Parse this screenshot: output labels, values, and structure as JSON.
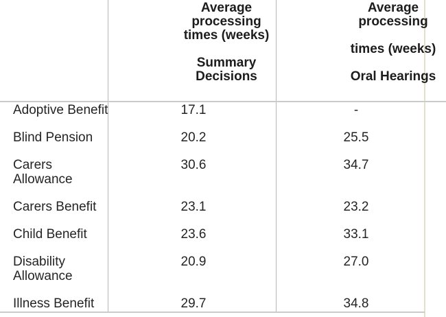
{
  "table": {
    "header": {
      "summary_decisions": {
        "text": "Average processing times (weeks) Summary Decisions",
        "lines": [
          "Average",
          "processing",
          "times (weeks)",
          "",
          "Summary",
          "Decisions"
        ]
      },
      "oral_hearings": {
        "text": "Average processing times (weeks) Oral Hearings",
        "lines": [
          "Average",
          "processing",
          "",
          "times (weeks)",
          "",
          "Oral Hearings"
        ]
      }
    },
    "rows": [
      {
        "label": "Adoptive Benefit",
        "summary_decisions": "17.1",
        "oral_hearings": "-"
      },
      {
        "label": "Blind Pension",
        "summary_decisions": "20.2",
        "oral_hearings": "25.5"
      },
      {
        "label": "Carers Allowance",
        "summary_decisions": "30.6",
        "oral_hearings": "34.7"
      },
      {
        "label": "Carers Benefit",
        "summary_decisions": "23.1",
        "oral_hearings": "23.2"
      },
      {
        "label": "Child Benefit",
        "summary_decisions": "23.6",
        "oral_hearings": "33.1"
      },
      {
        "label": "Disability Allowance",
        "summary_decisions": "20.9",
        "oral_hearings": "27.0"
      },
      {
        "label": "Illness Benefit",
        "summary_decisions": "29.7",
        "oral_hearings": "34.8"
      }
    ],
    "colors": {
      "grid_line": "#b6b6b6",
      "separator_line": "#cbcbcb",
      "page_edge_line": "#e4e1cb",
      "text": "#242424"
    }
  }
}
